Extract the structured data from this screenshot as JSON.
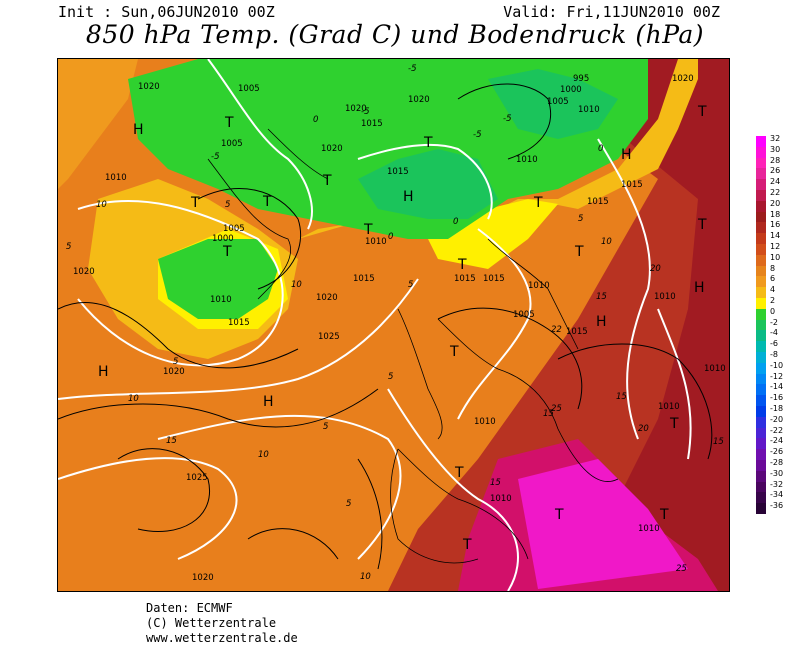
{
  "header": {
    "init": "Init : Sun,06JUN2010 00Z",
    "valid": "Valid: Fri,11JUN2010 00Z",
    "title": "850 hPa Temp. (Grad C) und Bodendruck (hPa)"
  },
  "credits": {
    "line1": "Daten: ECMWF",
    "line2": "(C) Wetterzentrale",
    "line3": "www.wetterzentrale.de"
  },
  "legend": {
    "labels": [
      "32",
      "30",
      "28",
      "26",
      "24",
      "22",
      "20",
      "18",
      "16",
      "14",
      "12",
      "10",
      "8",
      "6",
      "4",
      "2",
      "0",
      "-2",
      "-4",
      "-6",
      "-8",
      "-10",
      "-12",
      "-14",
      "-16",
      "-18",
      "-20",
      "-22",
      "-24",
      "-26",
      "-28",
      "-30",
      "-32",
      "-34",
      "-36"
    ],
    "colors": [
      "#ff00ff",
      "#ff11d8",
      "#ff22b8",
      "#e8259a",
      "#d51d77",
      "#c01a4e",
      "#a8162e",
      "#9c1c1c",
      "#b0281e",
      "#c43a1a",
      "#d24e1a",
      "#de6a1c",
      "#e6841c",
      "#f09a1e",
      "#f5bb16",
      "#fff000",
      "#2fd12f",
      "#1bc45b",
      "#0bbb86",
      "#00bab0",
      "#00b0d6",
      "#00a0f0",
      "#0088f5",
      "#0070f5",
      "#0055f0",
      "#003ce8",
      "#2f2fe0",
      "#4b24d6",
      "#6218c8",
      "#7010b0",
      "#6a0a98",
      "#5b087a",
      "#4a055f",
      "#38044a",
      "#280336"
    ]
  },
  "map": {
    "pressure_centers": [
      {
        "label": "H"
      },
      {
        "label": "H"
      },
      {
        "label": "H"
      },
      {
        "label": "H"
      },
      {
        "label": "H"
      },
      {
        "label": "H"
      },
      {
        "label": "H"
      },
      {
        "label": "T"
      },
      {
        "label": "T"
      },
      {
        "label": "T"
      },
      {
        "label": "T"
      },
      {
        "label": "T"
      },
      {
        "label": "T"
      },
      {
        "label": "T"
      },
      {
        "label": "T"
      },
      {
        "label": "T"
      },
      {
        "label": "T"
      },
      {
        "label": "T"
      },
      {
        "label": "T"
      },
      {
        "label": "T"
      },
      {
        "label": "T"
      },
      {
        "label": "T"
      },
      {
        "label": "T"
      },
      {
        "label": "T"
      },
      {
        "label": "T"
      }
    ],
    "isobar_labels": [
      "1020",
      "1005",
      "1005",
      "1000",
      "995",
      "1010",
      "1005",
      "1010",
      "1015",
      "1020",
      "1020",
      "1015",
      "1020",
      "1020",
      "1015",
      "1015",
      "1010",
      "1010",
      "1005",
      "1000",
      "1010",
      "1015",
      "1015",
      "1020",
      "1020",
      "1025",
      "1020",
      "1015",
      "1025",
      "1010",
      "1010",
      "1005",
      "1010",
      "1010",
      "1010",
      "1015",
      "1015",
      "1010",
      "1020",
      "1010"
    ],
    "temp_labels": [
      "-5",
      "-5",
      "-5",
      "-5",
      "-5",
      "0",
      "0",
      "0",
      "0",
      "5",
      "5",
      "5",
      "5",
      "5",
      "5",
      "5",
      "5",
      "10",
      "10",
      "10",
      "10",
      "10",
      "10",
      "15",
      "15",
      "15",
      "15",
      "15",
      "15",
      "20",
      "20",
      "22",
      "25",
      "25"
    ]
  }
}
